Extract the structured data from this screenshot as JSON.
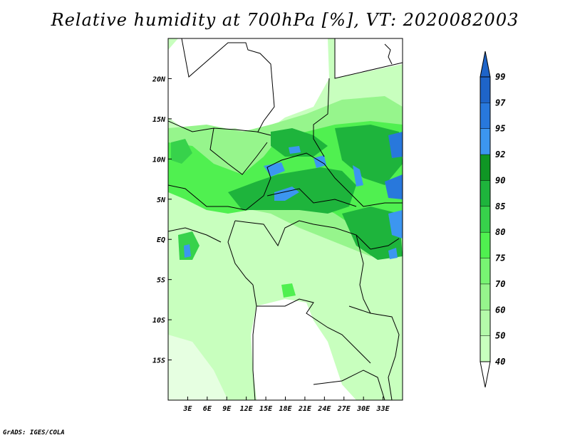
{
  "title": "Relative humidity at 700hPa [%], VT: 2020082003",
  "credit": "GrADS: IGES/COLA",
  "map": {
    "lon_range": [
      0,
      36
    ],
    "lat_range": [
      -20,
      25
    ],
    "lat_ticks": [
      {
        "value": 20,
        "label": "20N"
      },
      {
        "value": 15,
        "label": "15N"
      },
      {
        "value": 10,
        "label": "10N"
      },
      {
        "value": 5,
        "label": "5N"
      },
      {
        "value": 0,
        "label": "EQ"
      },
      {
        "value": -5,
        "label": "5S"
      },
      {
        "value": -10,
        "label": "10S"
      },
      {
        "value": -15,
        "label": "15S"
      }
    ],
    "lon_ticks": [
      {
        "value": 3,
        "label": "3E"
      },
      {
        "value": 6,
        "label": "6E"
      },
      {
        "value": 9,
        "label": "9E"
      },
      {
        "value": 12,
        "label": "12E"
      },
      {
        "value": 15,
        "label": "15E"
      },
      {
        "value": 18,
        "label": "18E"
      },
      {
        "value": 21,
        "label": "21E"
      },
      {
        "value": 24,
        "label": "24E"
      },
      {
        "value": 27,
        "label": "27E"
      },
      {
        "value": 30,
        "label": "30E"
      },
      {
        "value": 33,
        "label": "33E"
      }
    ]
  },
  "colorbar": {
    "levels": [
      {
        "label": "99",
        "color": "#1e64c8"
      },
      {
        "label": "97",
        "color": "#2878dc"
      },
      {
        "label": "95",
        "color": "#3c96f0"
      },
      {
        "label": "92",
        "color": "#0f9624"
      },
      {
        "label": "90",
        "color": "#1eb43c"
      },
      {
        "label": "85",
        "color": "#37d24b"
      },
      {
        "label": "80",
        "color": "#50f050"
      },
      {
        "label": "75",
        "color": "#78f573"
      },
      {
        "label": "70",
        "color": "#96f58c"
      },
      {
        "label": "60",
        "color": "#b4faaa"
      },
      {
        "label": "50",
        "color": "#c8ffbe"
      },
      {
        "label": "40",
        "color": "#e6ffe1"
      }
    ],
    "below_color": "#ffffff",
    "above_color": "#1e3cff"
  },
  "colors": {
    "land_low": "#e6ffe1",
    "boundaries": "#000000"
  }
}
